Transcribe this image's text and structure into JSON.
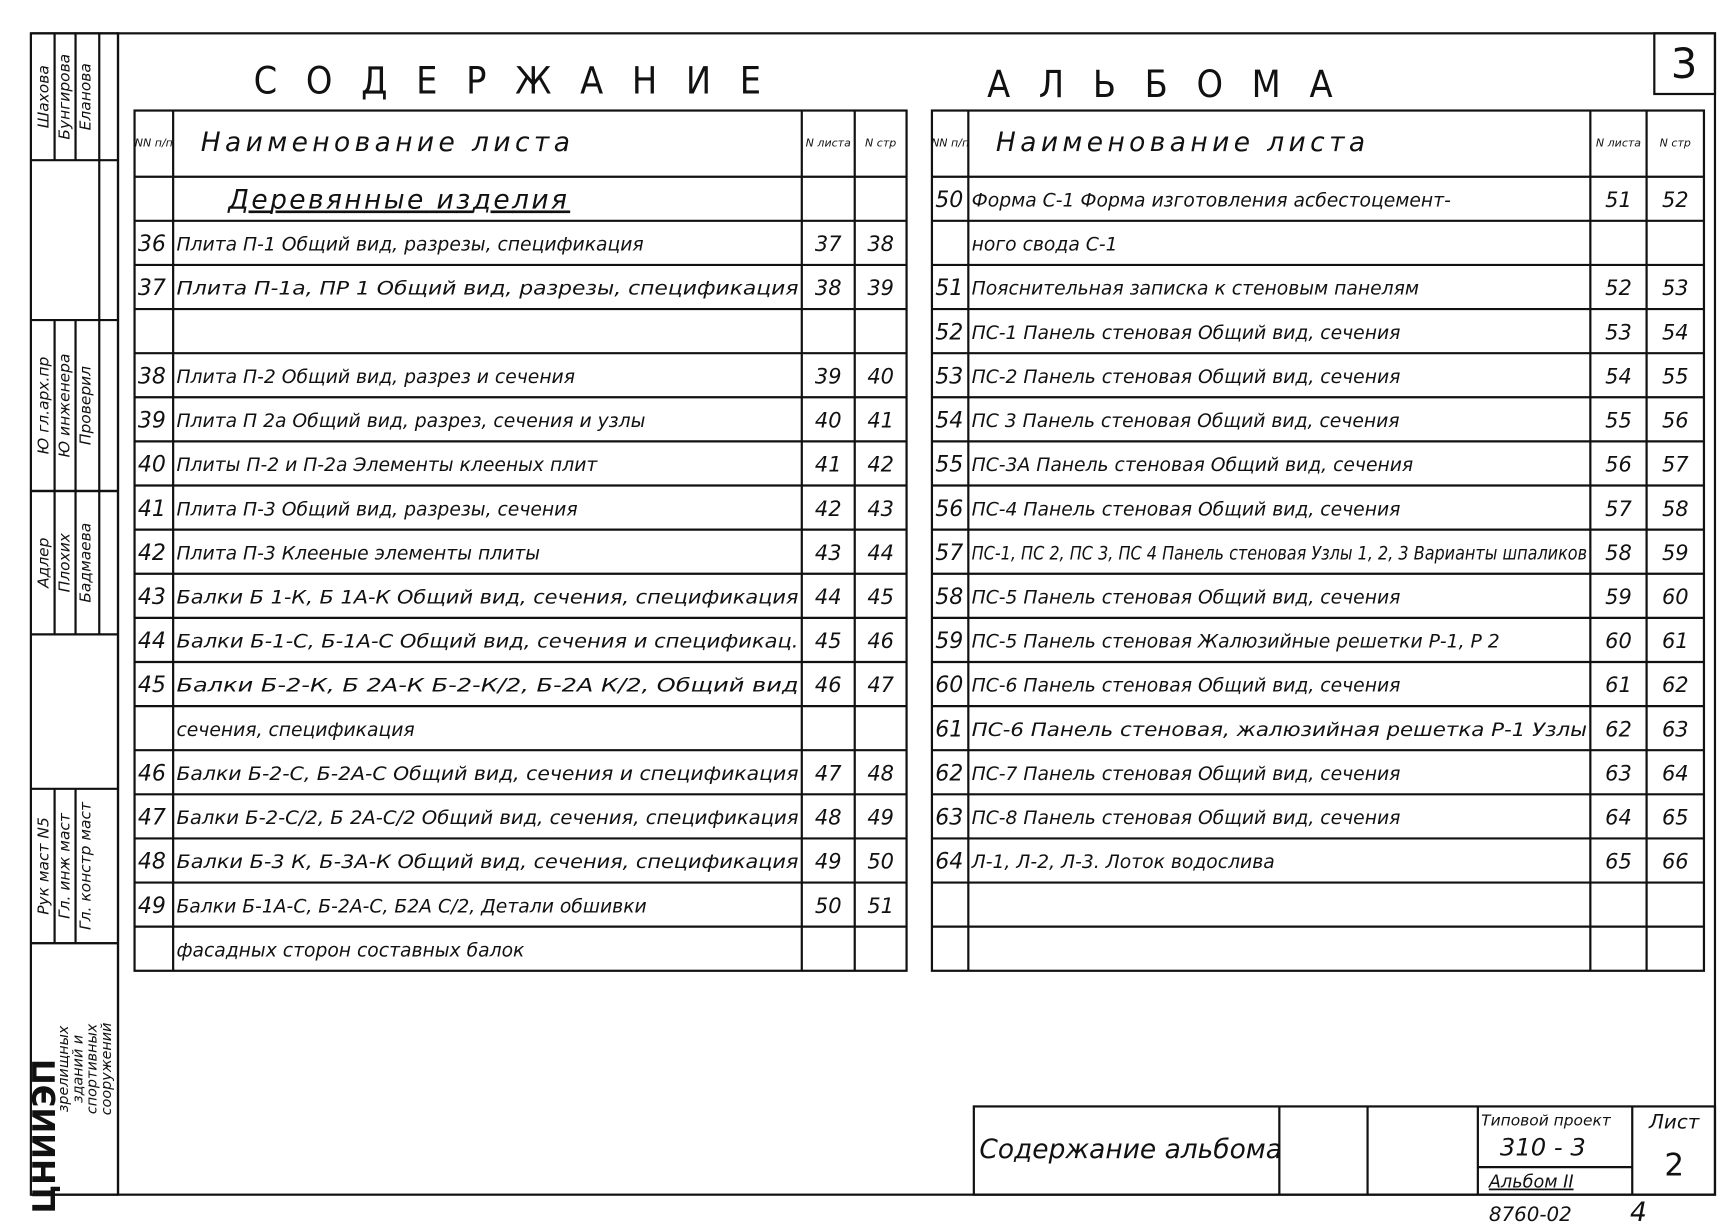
{
  "header": {
    "title_left": "СОДЕРЖАНИЕ",
    "title_right": "АЛЬБОМА",
    "sheet_corner": "3"
  },
  "left_table": {
    "columns": [
      "NN п/п",
      "Наименование листа",
      "N листа",
      "N стр"
    ],
    "rows": [
      {
        "name": "Деревянные изделия"
      },
      {
        "no": "36",
        "name": "Плита П-1 Общий вид, разрезы, спецификация",
        "sheet": "37",
        "page": "38"
      },
      {
        "no": "37",
        "name": "Плита П-1а, ПР 1 Общий вид, разрезы, спецификация",
        "sheet": "38",
        "page": "39"
      },
      {
        "no": "38",
        "name": "Плита П-2 Общий вид, разрез и сечения",
        "sheet": "39",
        "page": "40"
      },
      {
        "no": "39",
        "name": "Плита П 2а Общий вид, разрез, сечения и узлы",
        "sheet": "40",
        "page": "41"
      },
      {
        "no": "40",
        "name": "Плиты П-2 и П-2а Элементы клееных плит",
        "sheet": "41",
        "page": "42"
      },
      {
        "no": "41",
        "name": "Плита П-3 Общий вид, разрезы, сечения",
        "sheet": "42",
        "page": "43"
      },
      {
        "no": "42",
        "name": "Плита П-3 Клееные элементы плиты",
        "sheet": "43",
        "page": "44"
      },
      {
        "no": "43",
        "name": "Балки Б 1-К, Б 1А-К Общий вид, сечения, спецификация",
        "sheet": "44",
        "page": "45"
      },
      {
        "no": "44",
        "name": "Балки Б-1-С, Б-1А-С Общий вид, сечения и спецификац.",
        "sheet": "45",
        "page": "46"
      },
      {
        "no": "45",
        "name": "Балки Б-2-К, Б 2А-К  Б-2-К/2, Б-2А К/2, Общий вид",
        "sheet": "46",
        "page": "47"
      },
      {
        "name": "сечения, спецификация"
      },
      {
        "no": "46",
        "name": "Балки Б-2-С, Б-2А-С Общий вид, сечения и спецификация",
        "sheet": "47",
        "page": "48"
      },
      {
        "no": "47",
        "name": "Балки Б-2-С/2, Б 2А-С/2 Общий вид, сечения, спецификация",
        "sheet": "48",
        "page": "49"
      },
      {
        "no": "48",
        "name": "Балки Б-3 К, Б-3А-К Общий вид, сечения, спецификация",
        "sheet": "49",
        "page": "50"
      },
      {
        "no": "49",
        "name": "Балки Б-1А-С, Б-2А-С, Б2А С/2,  Детали обшивки",
        "sheet": "50",
        "page": "51"
      },
      {
        "name": "фасадных сторон составных балок"
      }
    ]
  },
  "right_table": {
    "columns": [
      "NN п/п",
      "Наименование листа",
      "N листа",
      "N стр"
    ],
    "rows": [
      {
        "no": "50",
        "name": "Форма С-1 Форма изготовления асбестоцемент-",
        "sheet": "51",
        "page": "52"
      },
      {
        "name": "ного свода С-1"
      },
      {
        "no": "51",
        "name": "Пояснительная записка к стеновым панелям",
        "sheet": "52",
        "page": "53"
      },
      {
        "no": "52",
        "name": "ПС-1 Панель стеновая Общий вид, сечения",
        "sheet": "53",
        "page": "54"
      },
      {
        "no": "53",
        "name": "ПС-2 Панель стеновая Общий вид, сечения",
        "sheet": "54",
        "page": "55"
      },
      {
        "no": "54",
        "name": "ПС 3 Панель стеновая Общий вид, сечения",
        "sheet": "55",
        "page": "56"
      },
      {
        "no": "55",
        "name": "ПС-3А Панель стеновая Общий вид, сечения",
        "sheet": "56",
        "page": "57"
      },
      {
        "no": "56",
        "name": "ПС-4 Панель стеновая Общий вид, сечения",
        "sheet": "57",
        "page": "58"
      },
      {
        "no": "57",
        "name": "ПС-1, ПС 2, ПС 3, ПС 4 Панель стеновая Узлы 1, 2, 3 Варианты шпаликов",
        "sheet": "58",
        "page": "59"
      },
      {
        "no": "58",
        "name": "ПС-5 Панель стеновая Общий вид, сечения",
        "sheet": "59",
        "page": "60"
      },
      {
        "no": "59",
        "name": "ПС-5 Панель стеновая Жалюзийные решетки Р-1, Р 2",
        "sheet": "60",
        "page": "61"
      },
      {
        "no": "60",
        "name": "ПС-6 Панель стеновая Общий вид, сечения",
        "sheet": "61",
        "page": "62"
      },
      {
        "no": "61",
        "name": "ПС-6 Панель стеновая, жалюзийная решетка Р-1 Узлы",
        "sheet": "62",
        "page": "63"
      },
      {
        "no": "62",
        "name": "ПС-7 Панель стеновая Общий вид, сечения",
        "sheet": "63",
        "page": "64"
      },
      {
        "no": "63",
        "name": "ПС-8 Панель стеновая Общий вид, сечения",
        "sheet": "64",
        "page": "65"
      },
      {
        "no": "64",
        "name": "Л-1, Л-2, Л-3. Лоток водослива",
        "sheet": "65",
        "page": "66"
      }
    ]
  },
  "side_stamp": [
    [
      "Шахова",
      "Бунгирова",
      "Еланова"
    ],
    [
      "Ю гл.арх.пр",
      "Ю инженера",
      "Проверил"
    ],
    [
      "Адлер",
      "Плохих",
      "Бадмаева"
    ],
    [
      "Рук маст N5",
      "Гл. инж маст",
      "Гл. констр маст"
    ],
    [
      "зрелищных",
      "зданий и",
      "спортивных",
      "сооружений"
    ]
  ],
  "side_org": "ЦНИИЭП",
  "stamp": {
    "title": "Содержание альбома",
    "project_label": "Типовой проект",
    "project": "310 - 3",
    "album": "Альбом II",
    "sheet_label": "Лист",
    "sheet": "2"
  },
  "footer": {
    "code": "8760-02",
    "number": "4"
  }
}
